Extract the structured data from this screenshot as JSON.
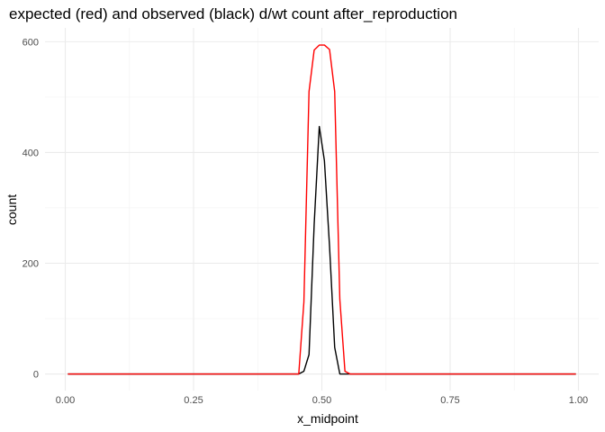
{
  "chart_data": {
    "type": "line",
    "title": "expected (red) and observed (black) d/wt count after_reproduction",
    "xlabel": "x_midpoint",
    "ylabel": "count",
    "xlim": [
      -0.0395,
      1.0395
    ],
    "ylim": [
      -30,
      625
    ],
    "x_ticks": [
      0.0,
      0.25,
      0.5,
      0.75,
      1.0
    ],
    "x_tick_labels": [
      "0.00",
      "0.25",
      "0.50",
      "0.75",
      "1.00"
    ],
    "y_ticks": [
      0,
      200,
      400,
      600
    ],
    "y_tick_labels": [
      "0",
      "200",
      "400",
      "600"
    ],
    "grid": true,
    "legend": "none",
    "series": [
      {
        "color": "#ff0000",
        "x": [
          0.005,
          0.455,
          0.465,
          0.475,
          0.485,
          0.495,
          0.505,
          0.515,
          0.525,
          0.535,
          0.545,
          0.555,
          0.995
        ],
        "values": [
          0,
          0,
          130,
          510,
          585,
          594,
          594,
          586,
          510,
          135,
          5,
          0,
          0
        ]
      },
      {
        "color": "#000000",
        "x": [
          0.005,
          0.455,
          0.465,
          0.475,
          0.485,
          0.495,
          0.505,
          0.515,
          0.525,
          0.535,
          0.995
        ],
        "values": [
          0,
          0,
          5,
          35,
          270,
          447,
          385,
          230,
          48,
          0,
          0
        ]
      }
    ]
  }
}
